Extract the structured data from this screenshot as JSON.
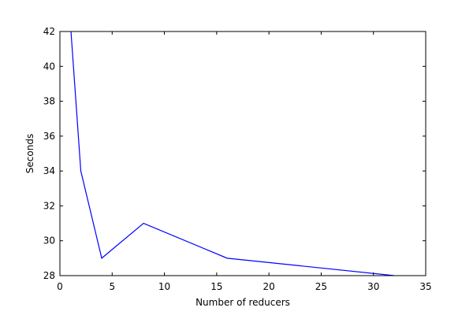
{
  "chart_data": {
    "type": "line",
    "title": "",
    "xlabel": "Number of reducers",
    "ylabel": "Seconds",
    "xlim": [
      0,
      35
    ],
    "ylim": [
      28,
      42
    ],
    "xticks": [
      0,
      5,
      10,
      15,
      20,
      25,
      30,
      35
    ],
    "yticks": [
      28,
      30,
      32,
      34,
      36,
      38,
      40,
      42
    ],
    "grid": false,
    "series": [
      {
        "color": "#0000ff",
        "x": [
          1,
          2,
          4,
          8,
          16,
          32
        ],
        "y": [
          42.5,
          34,
          29,
          31,
          29,
          28
        ]
      }
    ]
  }
}
